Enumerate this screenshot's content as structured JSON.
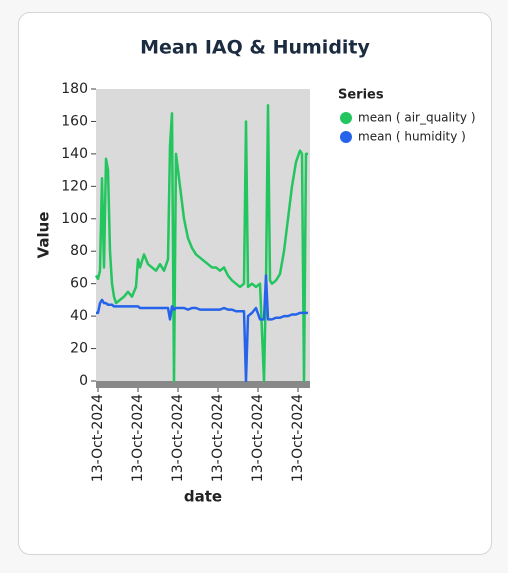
{
  "chart_data": {
    "type": "line",
    "title": "Mean IAQ & Humidity",
    "x_label": "date",
    "y_label": "Value",
    "legend_title": "Series",
    "legend": "right",
    "x": [
      0,
      1,
      2,
      3,
      4,
      5,
      6,
      7,
      8,
      9,
      10,
      12,
      14,
      16,
      18,
      20,
      21,
      22,
      24,
      26,
      28,
      30,
      32,
      34,
      36,
      37,
      38,
      39,
      40,
      42,
      44,
      46,
      48,
      50,
      52,
      54,
      56,
      58,
      60,
      62,
      64,
      66,
      68,
      70,
      72,
      74,
      75,
      76,
      78,
      80,
      82,
      84,
      85,
      86,
      87,
      88,
      90,
      92,
      94,
      96,
      98,
      100,
      102,
      103,
      104,
      105,
      106
    ],
    "xlim": [
      0,
      107
    ],
    "xticks": [
      {
        "value": 1,
        "label": "13-Oct-2024"
      },
      {
        "value": 21,
        "label": "13-Oct-2024"
      },
      {
        "value": 41,
        "label": "13-Oct-2024"
      },
      {
        "value": 61,
        "label": "13-Oct-2024"
      },
      {
        "value": 81,
        "label": "13-Oct-2024"
      },
      {
        "value": 101,
        "label": "13-Oct-2024"
      }
    ],
    "ylim": [
      0,
      180
    ],
    "yticks": [
      0,
      20,
      40,
      60,
      80,
      100,
      120,
      140,
      160,
      180
    ],
    "series": [
      {
        "name": "mean ( air_quality )",
        "color": "#22c55e",
        "values": [
          65,
          63,
          68,
          125,
          70,
          137,
          130,
          80,
          60,
          52,
          48,
          50,
          52,
          55,
          52,
          58,
          75,
          70,
          78,
          72,
          70,
          68,
          72,
          68,
          75,
          145,
          165,
          0,
          140,
          120,
          100,
          88,
          82,
          78,
          76,
          74,
          72,
          70,
          70,
          68,
          70,
          65,
          62,
          60,
          58,
          60,
          160,
          58,
          60,
          58,
          60,
          0,
          60,
          170,
          62,
          60,
          62,
          66,
          80,
          100,
          120,
          135,
          142,
          140,
          0,
          140,
          140
        ]
      },
      {
        "name": "mean ( humidity )",
        "color": "#2563eb",
        "values": [
          42,
          42,
          48,
          50,
          48,
          48,
          47,
          47,
          47,
          46,
          46,
          46,
          46,
          46,
          46,
          46,
          46,
          45,
          45,
          45,
          45,
          45,
          45,
          45,
          45,
          38,
          46,
          44,
          45,
          45,
          45,
          44,
          45,
          45,
          44,
          44,
          44,
          44,
          44,
          44,
          45,
          44,
          44,
          43,
          43,
          43,
          0,
          40,
          42,
          45,
          38,
          38,
          65,
          38,
          38,
          38,
          39,
          39,
          40,
          40,
          41,
          41,
          42,
          42,
          42,
          42,
          42
        ]
      }
    ]
  }
}
